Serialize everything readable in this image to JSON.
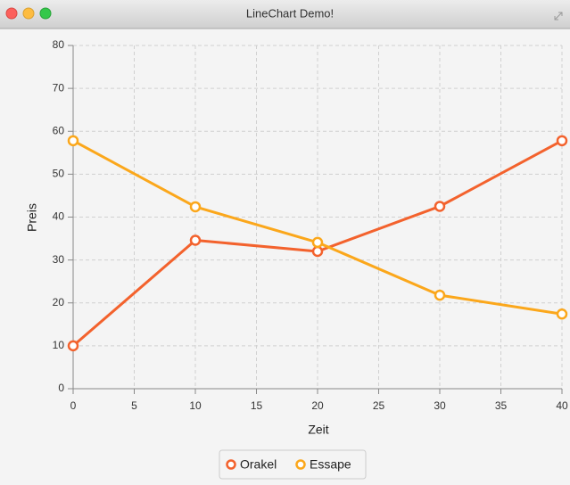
{
  "window_title": "LineChart Demo!",
  "chart_data": {
    "type": "line",
    "x_label": "Zeit",
    "y_label": "Preis",
    "x": [
      0,
      10,
      20,
      30,
      40
    ],
    "series": [
      {
        "name": "Orakel",
        "color": "#f3622d",
        "values": [
          10,
          34.6,
          32,
          42.5,
          57.8
        ]
      },
      {
        "name": "Essape",
        "color": "#fba71b",
        "values": [
          57.8,
          42.4,
          34.1,
          21.8,
          17.4
        ]
      }
    ],
    "xlim": [
      0,
      40
    ],
    "xticks": [
      0,
      5,
      10,
      15,
      20,
      25,
      30,
      35,
      40
    ],
    "ylim": [
      0,
      80
    ],
    "yticks": [
      0,
      10,
      20,
      30,
      40,
      50,
      60,
      70,
      80
    ],
    "grid": true,
    "legend": "bottom"
  }
}
